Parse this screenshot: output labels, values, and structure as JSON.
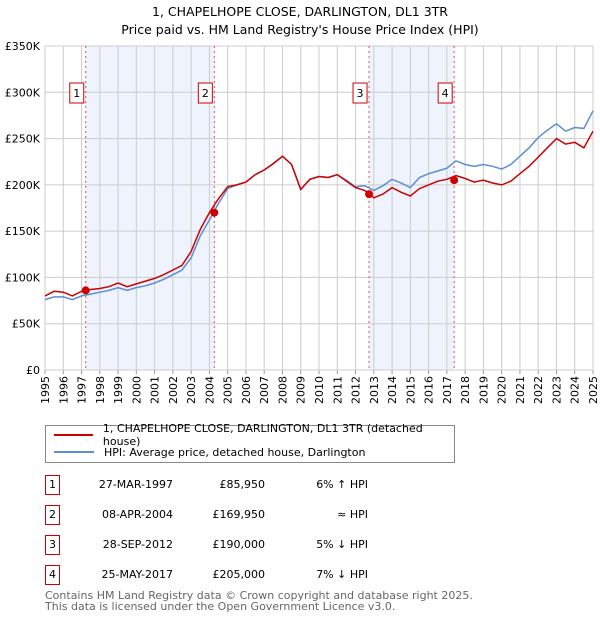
{
  "title": "1, CHAPELHOPE CLOSE, DARLINGTON, DL1 3TR",
  "subtitle": "Price paid vs. HM Land Registry's House Price Index (HPI)",
  "chart_data": {
    "type": "line",
    "title": "1, CHAPELHOPE CLOSE, DARLINGTON, DL1 3TR",
    "subtitle": "Price paid vs. HM Land Registry's House Price Index (HPI)",
    "xlim": [
      1995,
      2025
    ],
    "ylim": [
      0,
      350000
    ],
    "x_ticks": [
      "1995",
      "1996",
      "1997",
      "1998",
      "1999",
      "2000",
      "2001",
      "2002",
      "2003",
      "2004",
      "2005",
      "2006",
      "2007",
      "2008",
      "2009",
      "2010",
      "2011",
      "2012",
      "2013",
      "2014",
      "2015",
      "2016",
      "2017",
      "2018",
      "2019",
      "2020",
      "2021",
      "2022",
      "2023",
      "2024",
      "2025"
    ],
    "y_ticks": [
      {
        "v": 0,
        "label": "£0"
      },
      {
        "v": 50000,
        "label": "£50K"
      },
      {
        "v": 100000,
        "label": "£100K"
      },
      {
        "v": 150000,
        "label": "£150K"
      },
      {
        "v": 200000,
        "label": "£200K"
      },
      {
        "v": 250000,
        "label": "£250K"
      },
      {
        "v": 300000,
        "label": "£300K"
      },
      {
        "v": 350000,
        "label": "£350K"
      }
    ],
    "grid": true,
    "x": [
      1995,
      1995.5,
      1996,
      1996.5,
      1997,
      1997.5,
      1998,
      1998.5,
      1999,
      1999.5,
      2000,
      2000.5,
      2001,
      2001.5,
      2002,
      2002.5,
      2003,
      2003.5,
      2004,
      2004.5,
      2005,
      2005.5,
      2006,
      2006.5,
      2007,
      2007.5,
      2008,
      2008.5,
      2009,
      2009.5,
      2010,
      2010.5,
      2011,
      2011.5,
      2012,
      2012.5,
      2013,
      2013.5,
      2014,
      2014.5,
      2015,
      2015.5,
      2016,
      2016.5,
      2017,
      2017.5,
      2018,
      2018.5,
      2019,
      2019.5,
      2020,
      2020.5,
      2021,
      2021.5,
      2022,
      2022.5,
      2023,
      2023.5,
      2024,
      2024.5,
      2025
    ],
    "series": [
      {
        "name": "1, CHAPELHOPE CLOSE, DARLINGTON, DL1 3TR (detached house)",
        "color": "#cc0000",
        "values": [
          80,
          85,
          84,
          80,
          85,
          87,
          88,
          90,
          94,
          90,
          93,
          96,
          99,
          103,
          108,
          113,
          128,
          152,
          170,
          185,
          198,
          200,
          203,
          211,
          216,
          223,
          231,
          222,
          195,
          206,
          209,
          208,
          211,
          204,
          197,
          194,
          186,
          190,
          197,
          192,
          188,
          196,
          200,
          204,
          206,
          210,
          207,
          203,
          205,
          202,
          200,
          204,
          212,
          220,
          230,
          240,
          250,
          244,
          246,
          240,
          258
        ]
      },
      {
        "name": "HPI: Average price, detached house, Darlington",
        "color": "#5b8fd4",
        "values": [
          76,
          79,
          79,
          76,
          80,
          82,
          84,
          86,
          89,
          86,
          89,
          91,
          94,
          98,
          103,
          108,
          121,
          145,
          162,
          180,
          196,
          200,
          203,
          211,
          216,
          223,
          231,
          222,
          195,
          206,
          209,
          208,
          211,
          205,
          198,
          199,
          194,
          199,
          206,
          202,
          197,
          208,
          212,
          215,
          218,
          226,
          222,
          220,
          222,
          220,
          217,
          222,
          231,
          240,
          251,
          259,
          266,
          258,
          262,
          261,
          280
        ]
      }
    ],
    "sales": [
      {
        "id": "1",
        "x": 1997.23,
        "value": 85950
      },
      {
        "id": "2",
        "x": 2004.27,
        "value": 169950
      },
      {
        "id": "3",
        "x": 2012.74,
        "value": 190000
      },
      {
        "id": "4",
        "x": 2017.4,
        "value": 205000
      }
    ],
    "shaded_ranges": [
      [
        1997.23,
        2004.27
      ],
      [
        2012.74,
        2017.4
      ]
    ],
    "legend_placement": "below"
  },
  "legend": {
    "property": "1, CHAPELHOPE CLOSE, DARLINGTON, DL1 3TR (detached house)",
    "hpi": "HPI: Average price, detached house, Darlington"
  },
  "transactions": [
    {
      "id": "1",
      "date": "27-MAR-1997",
      "price": "£85,950",
      "hpi": "6% ↑ HPI"
    },
    {
      "id": "2",
      "date": "08-APR-2004",
      "price": "£169,950",
      "hpi": "≈ HPI"
    },
    {
      "id": "3",
      "date": "28-SEP-2012",
      "price": "£190,000",
      "hpi": "5% ↓ HPI"
    },
    {
      "id": "4",
      "date": "25-MAY-2017",
      "price": "£205,000",
      "hpi": "7% ↓ HPI"
    }
  ],
  "footer": {
    "line1": "Contains HM Land Registry data © Crown copyright and database right 2025.",
    "line2": "This data is licensed under the Open Government Licence v3.0."
  }
}
